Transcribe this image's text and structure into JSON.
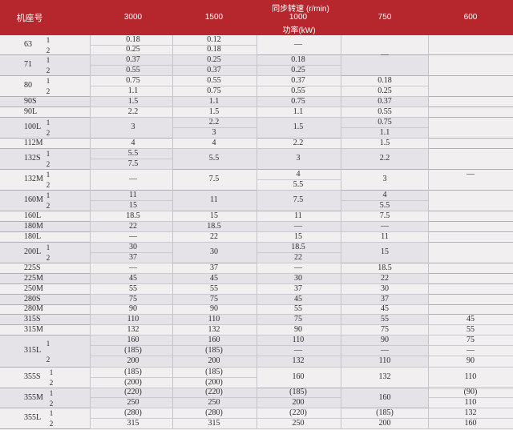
{
  "header": {
    "frame_label": "机座号",
    "sync_label": "同步转速 (r/min)",
    "power_label": "功率(kW)",
    "speeds": [
      "3000",
      "1500",
      "1000",
      "750",
      "600"
    ]
  },
  "frames": [
    "63",
    "71",
    "80",
    "90S",
    "90L",
    "100L",
    "112M",
    "132S",
    "132M",
    "160M",
    "160L",
    "180M",
    "180L",
    "200L",
    "225S",
    "225M",
    "250M",
    "280S",
    "280M",
    "315S",
    "315M",
    "315L",
    "355S",
    "355M",
    "355L"
  ],
  "sub_labels": [
    "1",
    "2",
    "1",
    "2",
    "1",
    "2",
    "1",
    "2",
    "1",
    "2",
    "1",
    "2",
    "1",
    "2",
    "1",
    "2",
    "1",
    "2",
    "1",
    "2",
    "1",
    "2",
    "1",
    "2",
    "1",
    "2",
    "1",
    "2"
  ],
  "cells": [
    "0.18",
    "0.25",
    "0.37",
    "0.55",
    "0.75",
    "1.1",
    "1.5",
    "2.2",
    "3",
    "4",
    "5.5",
    "7.5",
    "—",
    "11",
    "15",
    "18.5",
    "22",
    "—",
    "30",
    "37",
    "—",
    "45",
    "55",
    "75",
    "90",
    "110",
    "132",
    "160",
    "(185)",
    "200",
    "(185)",
    "(200)",
    "(220)",
    "250",
    "(280)",
    "315",
    "0.12",
    "0.18",
    "0.25",
    "0.37",
    "0.55",
    "0.75",
    "1.1",
    "1.5",
    "2.2",
    "3",
    "4",
    "5.5",
    "7.5",
    "11",
    "15",
    "18.5",
    "22",
    "30",
    "37",
    "45",
    "55",
    "75",
    "90",
    "110",
    "132",
    "160",
    "(185)",
    "200",
    "(185)",
    "(200)",
    "(220)",
    "250",
    "(280)",
    "315",
    "—",
    "0.18",
    "0.25",
    "0.37",
    "0.55",
    "0.75",
    "1.1",
    "1.5",
    "2.2",
    "3",
    "4",
    "5.5",
    "7.5",
    "11",
    "—",
    "15",
    "18.5",
    "22",
    "—",
    "30",
    "37",
    "45",
    "55",
    "75",
    "90",
    "110",
    "—",
    "132",
    "160",
    "(185)",
    "200",
    "(220)",
    "250",
    "—",
    "0.18",
    "0.25",
    "0.37",
    "0.55",
    "0.75",
    "1.1",
    "1.5",
    "2.2",
    "3",
    "4",
    "5.5",
    "7.5",
    "—",
    "11",
    "15",
    "18.5",
    "22",
    "30",
    "37",
    "45",
    "55",
    "75",
    "90",
    "—",
    "110",
    "132",
    "160",
    "(185)",
    "200",
    "—",
    "45",
    "55",
    "75",
    "—",
    "90",
    "110",
    "(90)",
    "110",
    "132",
    "160",
    "(185)"
  ]
}
